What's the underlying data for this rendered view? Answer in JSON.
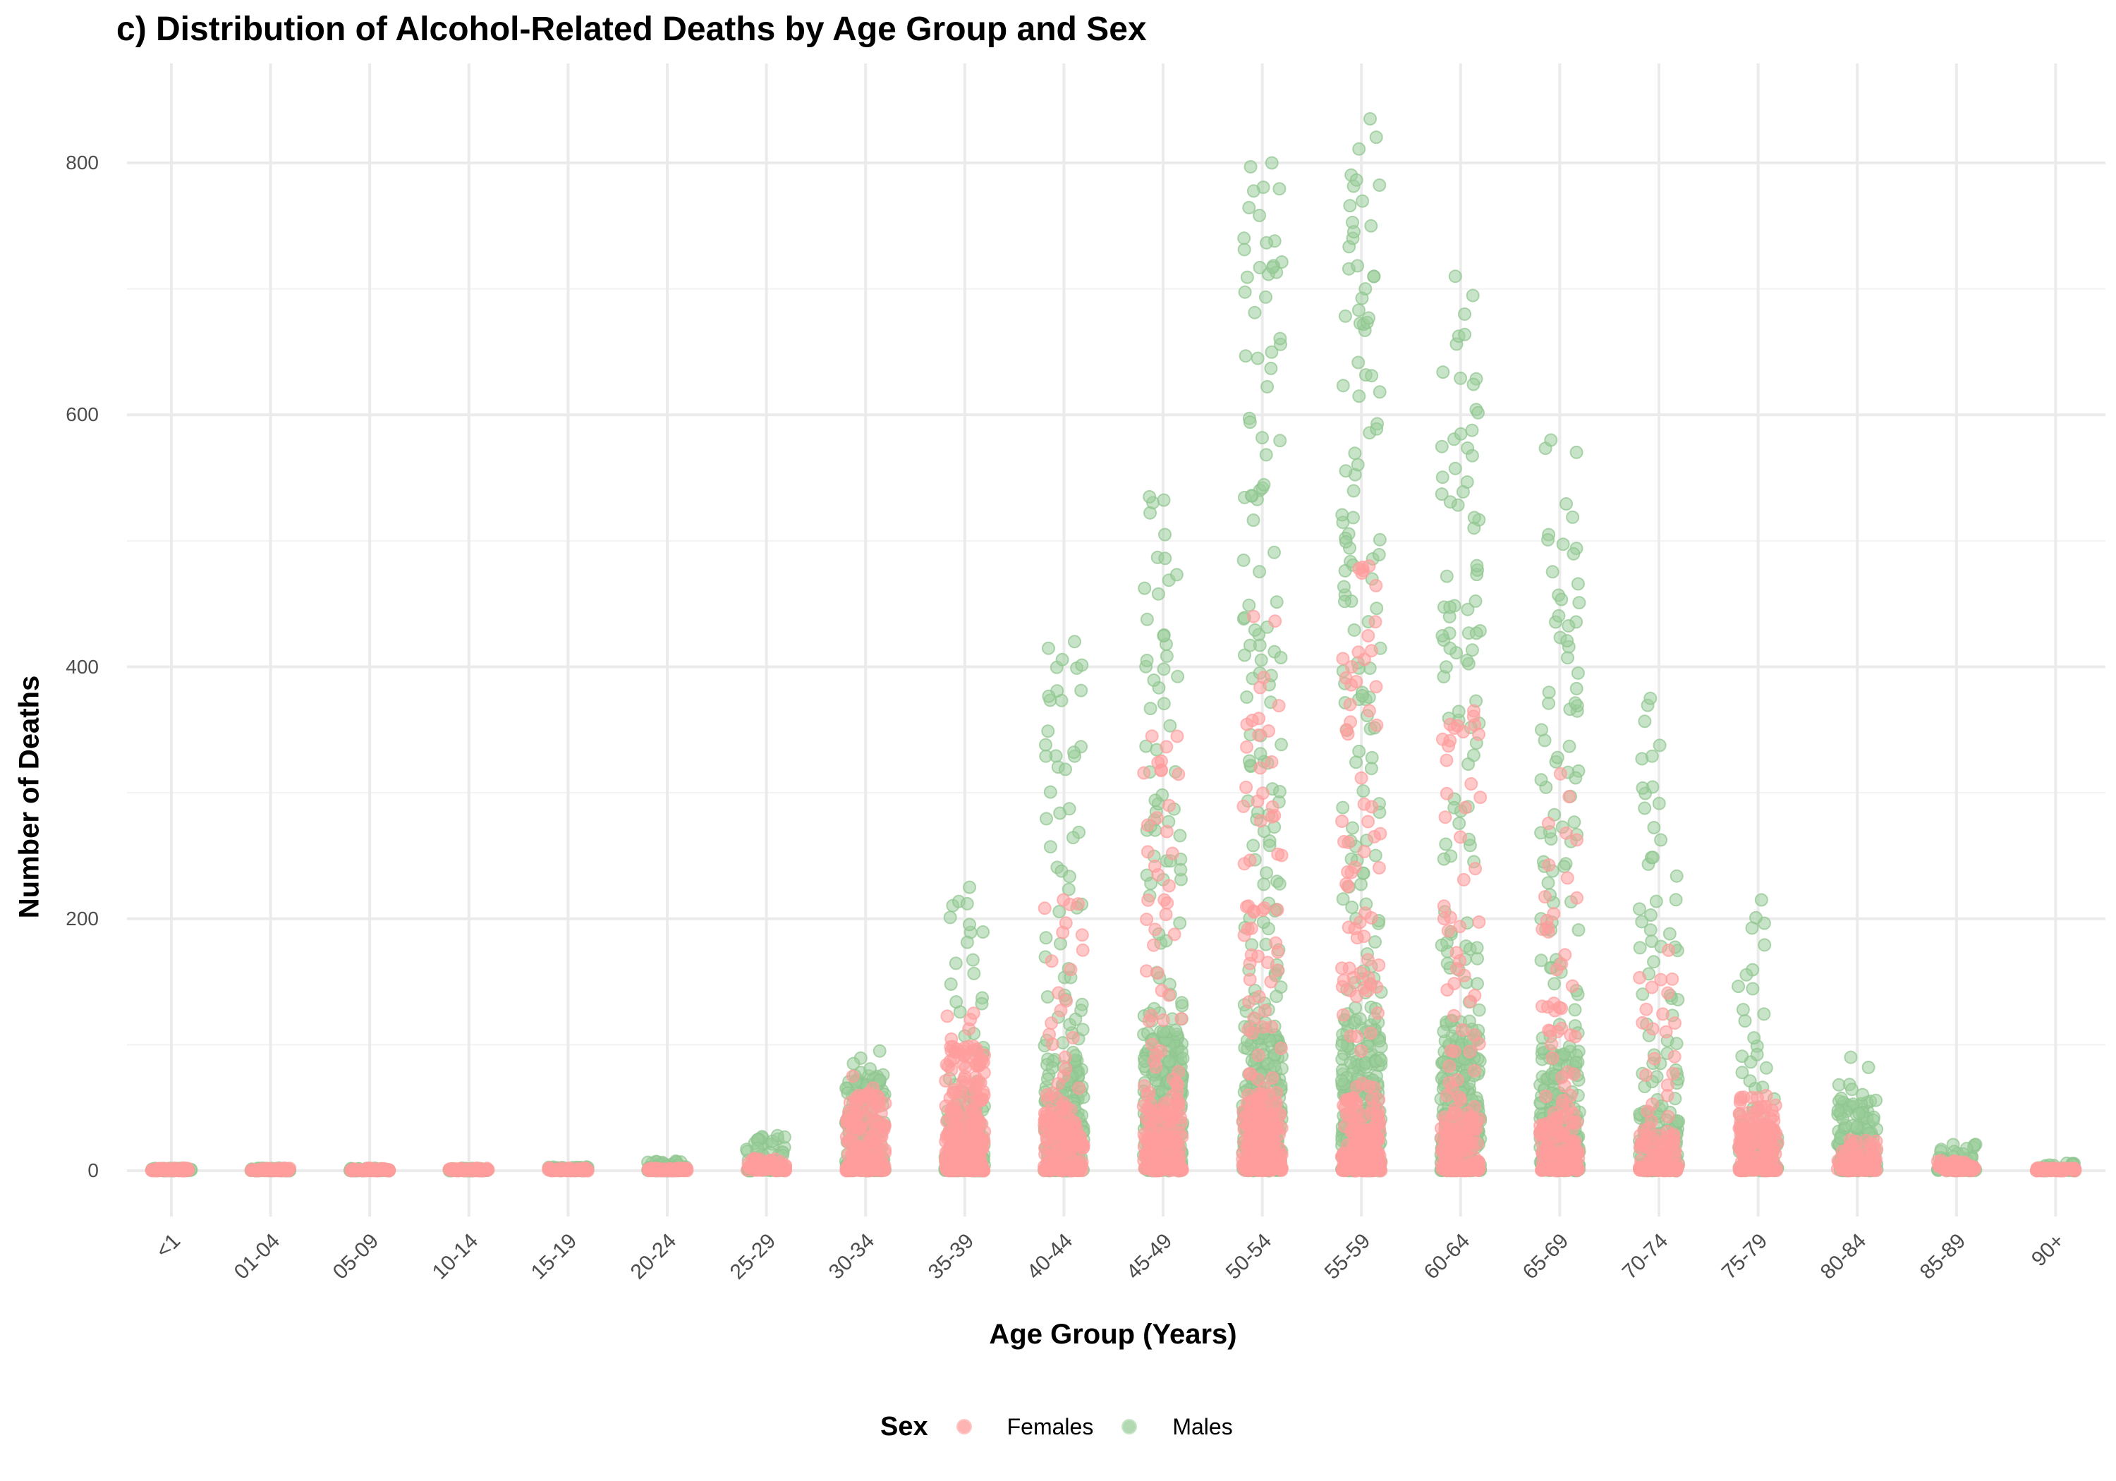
{
  "chart_data": {
    "type": "scatter",
    "subtype": "jitter_strip",
    "title": "c) Distribution of Alcohol-Related Deaths by Age Group and Sex",
    "xlabel": "Age Group (Years)",
    "ylabel": "Number of Deaths",
    "ylim": [
      -35,
      870
    ],
    "y_ticks": [
      0,
      200,
      400,
      600,
      800
    ],
    "y_minor_grid": [
      100,
      300,
      500,
      700
    ],
    "grid": true,
    "legend_position": "bottom",
    "legend_title": "Sex",
    "categories": [
      "<1",
      "01-04",
      "05-09",
      "10-14",
      "15-19",
      "20-24",
      "25-29",
      "30-34",
      "35-39",
      "40-44",
      "45-49",
      "50-54",
      "55-59",
      "60-64",
      "65-69",
      "70-74",
      "75-79",
      "80-84",
      "85-89",
      "90+"
    ],
    "series": [
      {
        "name": "Females",
        "color": "#F8766D",
        "alpha": 0.5,
        "approx_max": [
          2,
          1,
          1,
          1,
          2,
          3,
          15,
          75,
          125,
          215,
          345,
          440,
          480,
          365,
          315,
          175,
          65,
          30,
          10,
          3
        ],
        "dense_cluster_top": [
          1,
          1,
          1,
          1,
          1,
          2,
          10,
          60,
          100,
          50,
          55,
          60,
          60,
          45,
          40,
          30,
          60,
          25,
          8,
          2
        ]
      },
      {
        "name": "Males",
        "color": "#7CAE00",
        "display_color": "#98CC98",
        "alpha": 0.5,
        "approx_max": [
          2,
          1,
          1,
          1,
          5,
          12,
          35,
          95,
          225,
          420,
          535,
          800,
          835,
          710,
          580,
          375,
          215,
          90,
          25,
          8
        ],
        "dense_cluster_top": [
          1,
          1,
          1,
          1,
          3,
          8,
          28,
          80,
          60,
          90,
          110,
          115,
          120,
          110,
          95,
          50,
          35,
          60,
          22,
          6
        ]
      }
    ]
  },
  "legend": {
    "title": "Sex",
    "items": [
      {
        "label": "Females",
        "color": "#FF9C9C"
      },
      {
        "label": "Males",
        "color": "#9ACD9A"
      }
    ]
  }
}
